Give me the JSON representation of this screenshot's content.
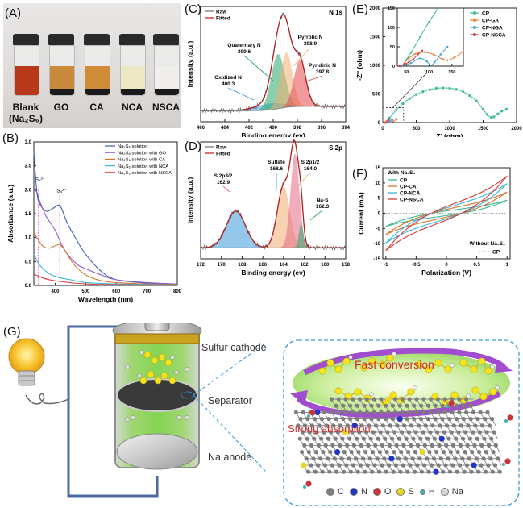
{
  "panels": {
    "A": {
      "label": "(A)",
      "vials": [
        {
          "name": "Blank",
          "sub": "(Na₂S₆)",
          "color": "#b8381a"
        },
        {
          "name": "GO",
          "sub": "",
          "color": "#c98a3c"
        },
        {
          "name": "CA",
          "sub": "",
          "color": "#cf8b35"
        },
        {
          "name": "NCA",
          "sub": "",
          "color": "#ece8c6"
        },
        {
          "name": "NSCA",
          "sub": "",
          "color": "#efeeea"
        }
      ]
    },
    "B": {
      "label": "(B)",
      "annotations": [
        "S₆²⁻",
        "S₄²⁻"
      ]
    },
    "C": {
      "label": "(C)",
      "corner_title": "N 1s",
      "peaks": [
        {
          "name": "Quaternary N",
          "value": "399.6",
          "color": "#2ea56a"
        },
        {
          "name": "Pyrrolic N",
          "value": "398.9",
          "color": "#f0ad73"
        },
        {
          "name": "Pyridinic N",
          "value": "397.8",
          "color": "#e8484a"
        },
        {
          "name": "Oxidized N",
          "value": "400.3",
          "color": "#3a9bd9"
        }
      ]
    },
    "D": {
      "label": "(D)",
      "corner_title": "S 2p",
      "peaks": [
        {
          "name": "Sulfate",
          "value": "168.6",
          "color": "#3a9bd9"
        },
        {
          "name": "S 2p1/2",
          "value": "164.0",
          "color": "#f0ad73"
        },
        {
          "name": "S 2p3/2",
          "value": "162.9",
          "color": "#e86a86"
        },
        {
          "name": "Na-S",
          "value": "162.3",
          "color": "#2ea56a"
        }
      ]
    },
    "E": {
      "label": "(E)"
    },
    "F": {
      "label": "(F)",
      "legend_title": "With Na₂S₆",
      "legend2_title": "Without Na₂S₆",
      "legend2_item": "CP"
    },
    "G": {
      "label": "(G)",
      "labels": {
        "cathode": "Sulfur cathode",
        "separator": "Separator",
        "anode": "Na anode"
      },
      "fast_conversion": "Fast conversion",
      "strong_absorption": "Strong absorption",
      "atom_legend": [
        {
          "symbol": "C",
          "color": "#808080"
        },
        {
          "symbol": "N",
          "color": "#1f35c8"
        },
        {
          "symbol": "O",
          "color": "#c8343c"
        },
        {
          "symbol": "S",
          "color": "#e8d820"
        },
        {
          "symbol": "H",
          "color": "#3bb3b0"
        },
        {
          "symbol": "Na",
          "color": "#d8d8d8"
        }
      ]
    }
  },
  "chart_data": [
    {
      "id": "B",
      "type": "line",
      "title": "",
      "xlabel": "Wavelength (nm)",
      "ylabel": "Absorbance (a.u.)",
      "xlim": [
        330,
        800
      ],
      "ylim": [
        0,
        3.0
      ],
      "xticks": [
        400,
        500,
        600,
        700,
        800
      ],
      "yticks": [
        0.0,
        0.5,
        1.0,
        1.5,
        2.0,
        2.5,
        3.0
      ],
      "legend_position": "top-right",
      "series": [
        {
          "name": "Na₂S₆ solution",
          "color": "#3a5fb0",
          "x": [
            330,
            340,
            350,
            370,
            390,
            410,
            420,
            440,
            470,
            500,
            550,
            600,
            700,
            800
          ],
          "y": [
            2.8,
            1.95,
            1.7,
            1.55,
            1.6,
            1.68,
            1.62,
            1.3,
            0.95,
            0.65,
            0.3,
            0.12,
            0.05,
            0.03
          ]
        },
        {
          "name": "Na₂S₆ solution with GO",
          "color": "#8a5cc8",
          "x": [
            330,
            340,
            350,
            370,
            400,
            430,
            470,
            500,
            550,
            600,
            700,
            800
          ],
          "y": [
            2.0,
            1.95,
            1.75,
            1.45,
            1.15,
            0.75,
            0.45,
            0.35,
            0.22,
            0.12,
            0.06,
            0.03
          ]
        },
        {
          "name": "Na₂S₆ solution with CA",
          "color": "#d9722a",
          "x": [
            330,
            340,
            360,
            380,
            400,
            415,
            430,
            460,
            500,
            550,
            600,
            700,
            800
          ],
          "y": [
            1.12,
            1.0,
            0.82,
            0.78,
            0.83,
            0.85,
            0.75,
            0.45,
            0.22,
            0.1,
            0.06,
            0.03,
            0.02
          ]
        },
        {
          "name": "Na₂S₆ solution with NCA",
          "color": "#3bb8d8",
          "x": [
            330,
            350,
            380,
            410,
            450,
            500,
            600,
            700,
            800
          ],
          "y": [
            0.65,
            0.42,
            0.25,
            0.17,
            0.12,
            0.06,
            0.03,
            0.02,
            0.01
          ]
        },
        {
          "name": "Na₂S₆ solution with NSCA",
          "color": "#d8383a",
          "x": [
            330,
            350,
            380,
            420,
            480,
            550,
            700,
            800
          ],
          "y": [
            0.24,
            0.18,
            0.12,
            0.08,
            0.04,
            0.02,
            0.01,
            0.01
          ]
        }
      ],
      "annotations": [
        {
          "x": 345,
          "text": "S₆²⁻"
        },
        {
          "x": 415,
          "text": "S₄²⁻"
        }
      ]
    },
    {
      "id": "C",
      "type": "area",
      "title": "N 1s",
      "xlabel": "Binding energy (ev)",
      "ylabel": "Intensity (a.u.)",
      "xlim": [
        406,
        394
      ],
      "xticks": [
        406,
        404,
        402,
        400,
        398,
        396,
        394
      ],
      "legend": [
        "Raw",
        "Fitted"
      ],
      "legend_position": "top-left",
      "peaks": [
        {
          "name": "Oxidized N",
          "center": 400.3,
          "height": 0.06,
          "width": 1.6,
          "color": "#3a9bd9"
        },
        {
          "name": "Quaternary N",
          "center": 399.6,
          "height": 0.5,
          "width": 0.8,
          "color": "#2ea56a"
        },
        {
          "name": "Pyrrolic N",
          "center": 398.9,
          "height": 0.5,
          "width": 0.7,
          "color": "#f0ad73"
        },
        {
          "name": "Pyridinic N",
          "center": 397.8,
          "height": 0.42,
          "width": 0.7,
          "color": "#e8484a"
        }
      ]
    },
    {
      "id": "D",
      "type": "area",
      "title": "S 2p",
      "xlabel": "Binding energy (ev)",
      "ylabel": "Intensity (a.u.)",
      "xlim": [
        172,
        158
      ],
      "xticks": [
        172,
        170,
        168,
        166,
        164,
        162,
        160,
        158
      ],
      "legend": [
        "Raw",
        "Fitted"
      ],
      "legend_position": "top-left",
      "peaks": [
        {
          "name": "Sulfate",
          "center": 168.6,
          "height": 0.33,
          "width": 1.3,
          "color": "#3a9bd9"
        },
        {
          "name": "S 2p1/2",
          "center": 164.0,
          "height": 0.55,
          "width": 0.85,
          "color": "#f0ad73"
        },
        {
          "name": "S 2p3/2",
          "center": 162.9,
          "height": 0.85,
          "width": 0.6,
          "color": "#e86a86"
        },
        {
          "name": "Na-S",
          "center": 162.3,
          "height": 0.22,
          "width": 0.3,
          "color": "#2ea56a"
        }
      ]
    },
    {
      "id": "E",
      "type": "scatter",
      "xlabel": "Z' (ohm)",
      "ylabel": "-Z'' (ohm)",
      "xlim": [
        0,
        2000
      ],
      "ylim": [
        0,
        2000
      ],
      "xticks": [
        0,
        500,
        1000,
        1500,
        2000
      ],
      "yticks": [
        0,
        500,
        1000,
        1500,
        2000
      ],
      "legend_position": "top-right",
      "series": [
        {
          "name": "CP",
          "color": "#3fb89a",
          "x": [
            40,
            100,
            200,
            300,
            400,
            500,
            600,
            700,
            800,
            900,
            1000,
            1100,
            1200,
            1300,
            1400,
            1500,
            1560,
            1620,
            1660,
            1720,
            1780,
            1850
          ],
          "y": [
            0,
            80,
            220,
            330,
            420,
            490,
            540,
            575,
            600,
            605,
            600,
            580,
            540,
            470,
            380,
            230,
            140,
            90,
            100,
            150,
            200,
            235
          ]
        },
        {
          "name": "CP-GA",
          "color": "#e8803a",
          "x": [
            40,
            70,
            100,
            130,
            160,
            200
          ],
          "y": [
            0,
            25,
            35,
            20,
            15,
            60
          ]
        },
        {
          "name": "CP-NGA",
          "color": "#3ba8d8",
          "x": [
            40,
            70,
            100,
            120,
            140
          ],
          "y": [
            0,
            10,
            5,
            25,
            50
          ]
        },
        {
          "name": "CP-NSCA",
          "color": "#d8383a",
          "x": [
            35,
            50,
            60,
            70,
            85
          ],
          "y": [
            0,
            10,
            15,
            25,
            40
          ]
        }
      ],
      "inset": {
        "xlim": [
          30,
          175
        ],
        "ylim": [
          0,
          150
        ],
        "xticks": [
          50,
          100,
          150
        ],
        "yticks": [
          0,
          50,
          100,
          150
        ],
        "series": [
          {
            "name": "CP",
            "x": [
              40,
              60,
              80,
              100,
              120
            ],
            "y": [
              0,
              35,
              75,
              115,
              150
            ]
          },
          {
            "name": "CP-GA",
            "x": [
              40,
              55,
              70,
              90,
              110,
              130,
              140,
              155,
              175
            ],
            "y": [
              0,
              20,
              32,
              36,
              30,
              18,
              15,
              22,
              38
            ]
          },
          {
            "name": "CP-NGA",
            "x": [
              40,
              60,
              80,
              95,
              103,
              112,
              125,
              140
            ],
            "y": [
              0,
              8,
              20,
              12,
              2,
              10,
              30,
              50
            ]
          },
          {
            "name": "CP-NSCA",
            "x": [
              35,
              45,
              55,
              65,
              75,
              85
            ],
            "y": [
              0,
              5,
              10,
              18,
              30,
              40
            ]
          }
        ]
      }
    },
    {
      "id": "F",
      "type": "line",
      "xlabel": "Polarization (V)",
      "ylabel": "Current (mA)",
      "xlim": [
        -1.05,
        1.05
      ],
      "ylim": [
        -15,
        15
      ],
      "xticks": [
        -1.0,
        -0.5,
        0.0,
        0.5,
        1.0
      ],
      "yticks": [
        -15,
        -10,
        -5,
        0,
        5,
        10,
        15
      ],
      "legend_position": "top-left",
      "series": [
        {
          "name": "CP",
          "color": "#3fb89a",
          "peak_current": 4.3
        },
        {
          "name": "CP-CA",
          "color": "#d9722a",
          "peak_current": 7.0
        },
        {
          "name": "CP-NCA",
          "color": "#3bb8d8",
          "peak_current": 9.8
        },
        {
          "name": "CP-NSCA",
          "color": "#d8383a",
          "peak_current": 12.3
        },
        {
          "name": "CP (without Na₂S₆)",
          "color": "#999999",
          "peak_current": 0.0,
          "dashed": true
        }
      ]
    }
  ]
}
